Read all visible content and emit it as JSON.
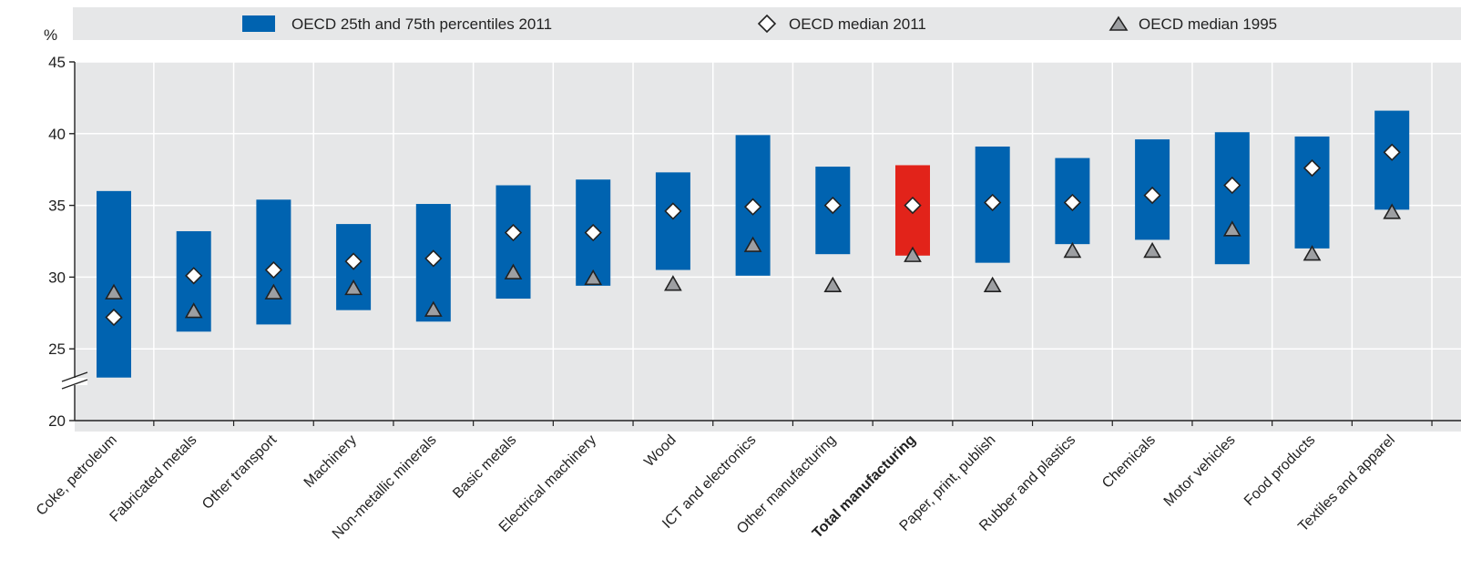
{
  "chart_data": {
    "type": "range-bar",
    "unit_label": "%",
    "ylim": [
      20,
      45
    ],
    "yticks": [
      20,
      25,
      30,
      35,
      40,
      45
    ],
    "axis_break": true,
    "grid": true,
    "legend_position": "top",
    "legend": {
      "range": "OECD 25th and 75th percentiles 2011",
      "median_2011": "OECD median 2011",
      "median_1995": "OECD median 1995"
    },
    "colors": {
      "range": "#0063b0",
      "highlight": "#e2231a",
      "plot_bg": "#e6e7e8",
      "legend_bg": "#e6e7e8",
      "grid": "#ffffff",
      "marker_fill_2011": "#ffffff",
      "marker_fill_1995": "#9d9fa2",
      "marker_stroke": "#222222"
    },
    "highlight_category": "Total manufacturing",
    "categories": [
      {
        "name": "Coke, petroleum",
        "p25": 23.0,
        "p75": 36.0,
        "median_2011": 27.2,
        "median_1995": 28.9
      },
      {
        "name": "Fabricated metals",
        "p25": 26.2,
        "p75": 33.2,
        "median_2011": 30.1,
        "median_1995": 27.6
      },
      {
        "name": "Other transport",
        "p25": 26.7,
        "p75": 35.4,
        "median_2011": 30.5,
        "median_1995": 28.9
      },
      {
        "name": "Machinery",
        "p25": 27.7,
        "p75": 33.7,
        "median_2011": 31.1,
        "median_1995": 29.2
      },
      {
        "name": "Non-metallic minerals",
        "p25": 26.9,
        "p75": 35.1,
        "median_2011": 31.3,
        "median_1995": 27.7
      },
      {
        "name": "Basic metals",
        "p25": 28.5,
        "p75": 36.4,
        "median_2011": 33.1,
        "median_1995": 30.3
      },
      {
        "name": "Electrical machinery",
        "p25": 29.4,
        "p75": 36.8,
        "median_2011": 33.1,
        "median_1995": 29.9
      },
      {
        "name": "Wood",
        "p25": 30.5,
        "p75": 37.3,
        "median_2011": 34.6,
        "median_1995": 29.5
      },
      {
        "name": "ICT and electronics",
        "p25": 30.1,
        "p75": 39.9,
        "median_2011": 34.9,
        "median_1995": 32.2
      },
      {
        "name": "Other manufacturing",
        "p25": 31.6,
        "p75": 37.7,
        "median_2011": 35.0,
        "median_1995": 29.4
      },
      {
        "name": "Total manufacturing",
        "p25": 31.5,
        "p75": 37.8,
        "median_2011": 35.0,
        "median_1995": 31.5
      },
      {
        "name": "Paper, print, publish",
        "p25": 31.0,
        "p75": 39.1,
        "median_2011": 35.2,
        "median_1995": 29.4
      },
      {
        "name": "Rubber and plastics",
        "p25": 32.3,
        "p75": 38.3,
        "median_2011": 35.2,
        "median_1995": 31.8
      },
      {
        "name": "Chemicals",
        "p25": 32.6,
        "p75": 39.6,
        "median_2011": 35.7,
        "median_1995": 31.8
      },
      {
        "name": "Motor vehicles",
        "p25": 30.9,
        "p75": 40.1,
        "median_2011": 36.4,
        "median_1995": 33.3
      },
      {
        "name": "Food products",
        "p25": 32.0,
        "p75": 39.8,
        "median_2011": 37.6,
        "median_1995": 31.6
      },
      {
        "name": "Textiles and apparel",
        "p25": 34.7,
        "p75": 41.6,
        "median_2011": 38.7,
        "median_1995": 34.5
      }
    ]
  }
}
